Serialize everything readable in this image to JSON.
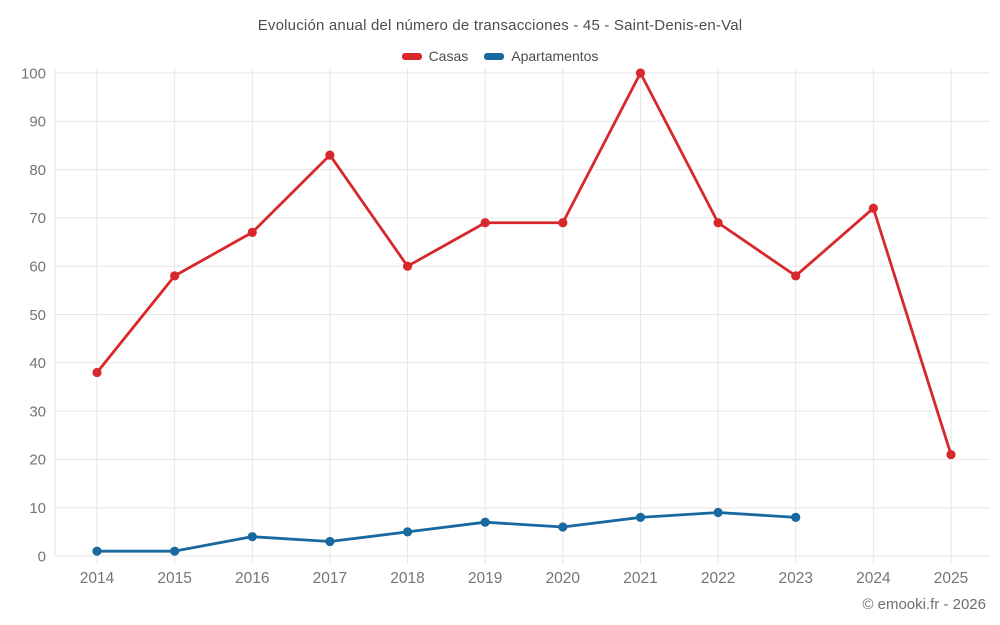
{
  "title": "Evolución anual del número de transacciones - 45 - Saint-Denis-en-Val",
  "copyright": "© emooki.fr - 2026",
  "chart_data": {
    "type": "line",
    "title": "Evolución anual del número de transacciones - 45 - Saint-Denis-en-Val",
    "x": [
      2014,
      2015,
      2016,
      2017,
      2018,
      2019,
      2020,
      2021,
      2022,
      2023,
      2024,
      2025
    ],
    "series": [
      {
        "name": "Casas",
        "color": "#d7282c",
        "values": [
          38,
          58,
          67,
          83,
          60,
          69,
          69,
          100,
          69,
          58,
          72,
          21
        ]
      },
      {
        "name": "Apartamentos",
        "color": "#17699f",
        "values": [
          1,
          1,
          4,
          3,
          5,
          7,
          6,
          8,
          9,
          8,
          null,
          null
        ]
      }
    ],
    "xlabel": "",
    "ylabel": "",
    "ylim": [
      0,
      100
    ],
    "yticks": [
      0,
      10,
      20,
      30,
      40,
      50,
      60,
      70,
      80,
      90,
      100
    ],
    "grid": true,
    "gridline_color": "#e6e6e6",
    "axis_label_color": "#757575",
    "legend_position": "top"
  }
}
